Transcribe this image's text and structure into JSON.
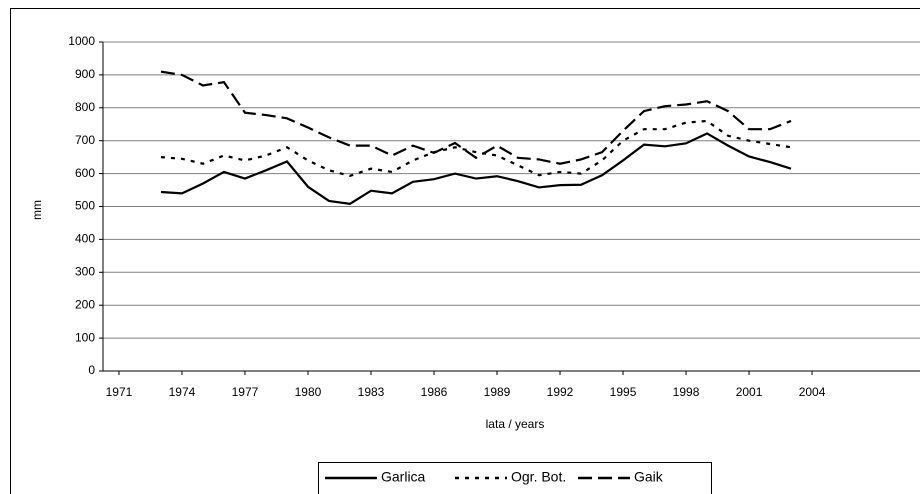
{
  "chart_data": {
    "type": "line",
    "x": [
      1973,
      1974,
      1975,
      1976,
      1977,
      1978,
      1979,
      1980,
      1981,
      1982,
      1983,
      1984,
      1985,
      1986,
      1987,
      1988,
      1989,
      1990,
      1991,
      1992,
      1993,
      1994,
      1995,
      1996,
      1997,
      1998,
      1999,
      2000,
      2001,
      2002,
      2003
    ],
    "series": [
      {
        "name": "Garlica",
        "color": "#000000",
        "style": "solid",
        "values": [
          544,
          540,
          570,
          605,
          585,
          610,
          637,
          560,
          517,
          508,
          548,
          540,
          575,
          583,
          600,
          585,
          592,
          577,
          558,
          565,
          566,
          595,
          640,
          688,
          683,
          692,
          722,
          685,
          652,
          635,
          615
        ]
      },
      {
        "name": "Ogr. Bot.",
        "color": "#000000",
        "style": "dotted",
        "values": [
          650,
          645,
          630,
          655,
          640,
          655,
          680,
          640,
          610,
          593,
          615,
          605,
          640,
          665,
          680,
          665,
          655,
          625,
          595,
          605,
          600,
          640,
          700,
          735,
          735,
          755,
          760,
          715,
          700,
          690,
          680
        ]
      },
      {
        "name": "Gaik",
        "color": "#000000",
        "style": "dashed",
        "values": [
          910,
          900,
          868,
          878,
          785,
          778,
          768,
          740,
          710,
          685,
          685,
          655,
          685,
          663,
          693,
          648,
          685,
          648,
          643,
          630,
          643,
          665,
          730,
          790,
          805,
          810,
          820,
          790,
          735,
          735,
          760
        ]
      }
    ],
    "xlabel": "lata / years",
    "ylabel": "mm",
    "xlim": [
      1970.24,
      2009.14
    ],
    "xticks": [
      1971,
      1974,
      1977,
      1980,
      1983,
      1986,
      1989,
      1992,
      1995,
      1998,
      2001,
      2004
    ],
    "ylim": [
      0,
      1000
    ],
    "yticks": [
      0,
      100,
      200,
      300,
      400,
      500,
      600,
      700,
      800,
      900,
      1000
    ],
    "grid": true,
    "legend": "bottom"
  }
}
